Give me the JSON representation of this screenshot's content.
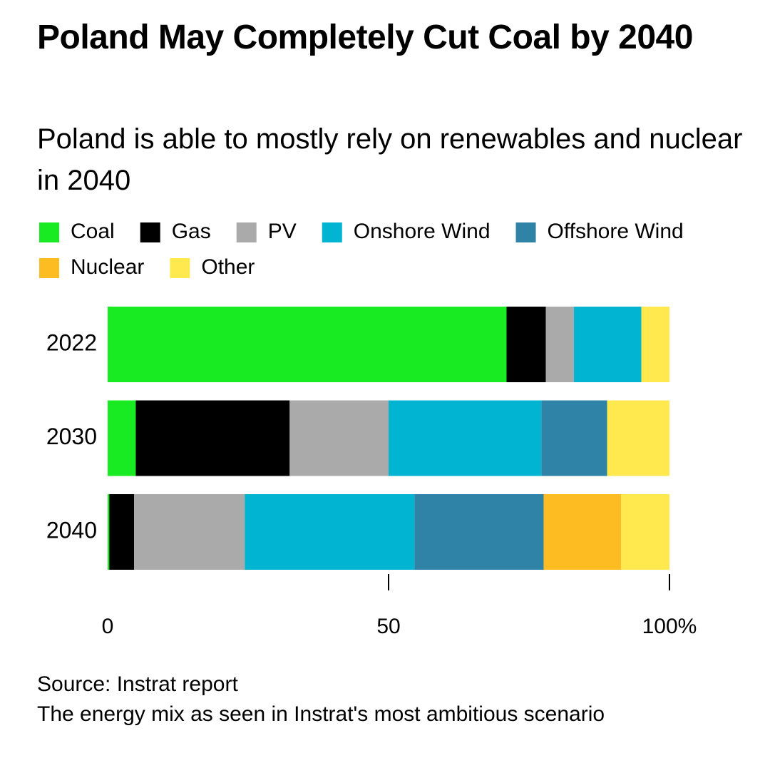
{
  "chart_data": {
    "type": "stacked-bar-horizontal",
    "title": "Poland May Completely Cut Coal by 2040",
    "subtitle": "Poland is able to mostly rely on renewables and nuclear in 2040",
    "categories": [
      "2022",
      "2030",
      "2040"
    ],
    "series": [
      {
        "name": "Coal",
        "color": "#18eb22",
        "values": [
          71,
          5,
          0.3
        ]
      },
      {
        "name": "Gas",
        "color": "#000000",
        "values": [
          7,
          27.4,
          4.4
        ]
      },
      {
        "name": "PV",
        "color": "#aaaaaa",
        "values": [
          5,
          17.6,
          19.7
        ]
      },
      {
        "name": "Onshore Wind",
        "color": "#00b4d2",
        "values": [
          12,
          27.2,
          30.2
        ]
      },
      {
        "name": "Offshore Wind",
        "color": "#2e83a6",
        "values": [
          0,
          11.7,
          23
        ]
      },
      {
        "name": "Nuclear",
        "color": "#fdbd22",
        "values": [
          0,
          0,
          13.8
        ]
      },
      {
        "name": "Other",
        "color": "#ffe94f",
        "values": [
          5,
          11.1,
          8.6
        ]
      }
    ],
    "xlim": [
      0,
      100
    ],
    "xticks": [
      0,
      50,
      {
        "value": 100,
        "label": "100%"
      }
    ],
    "source": "Source: Instrat report",
    "note": "The energy mix as seen in Instrat's most ambitious scenario"
  }
}
